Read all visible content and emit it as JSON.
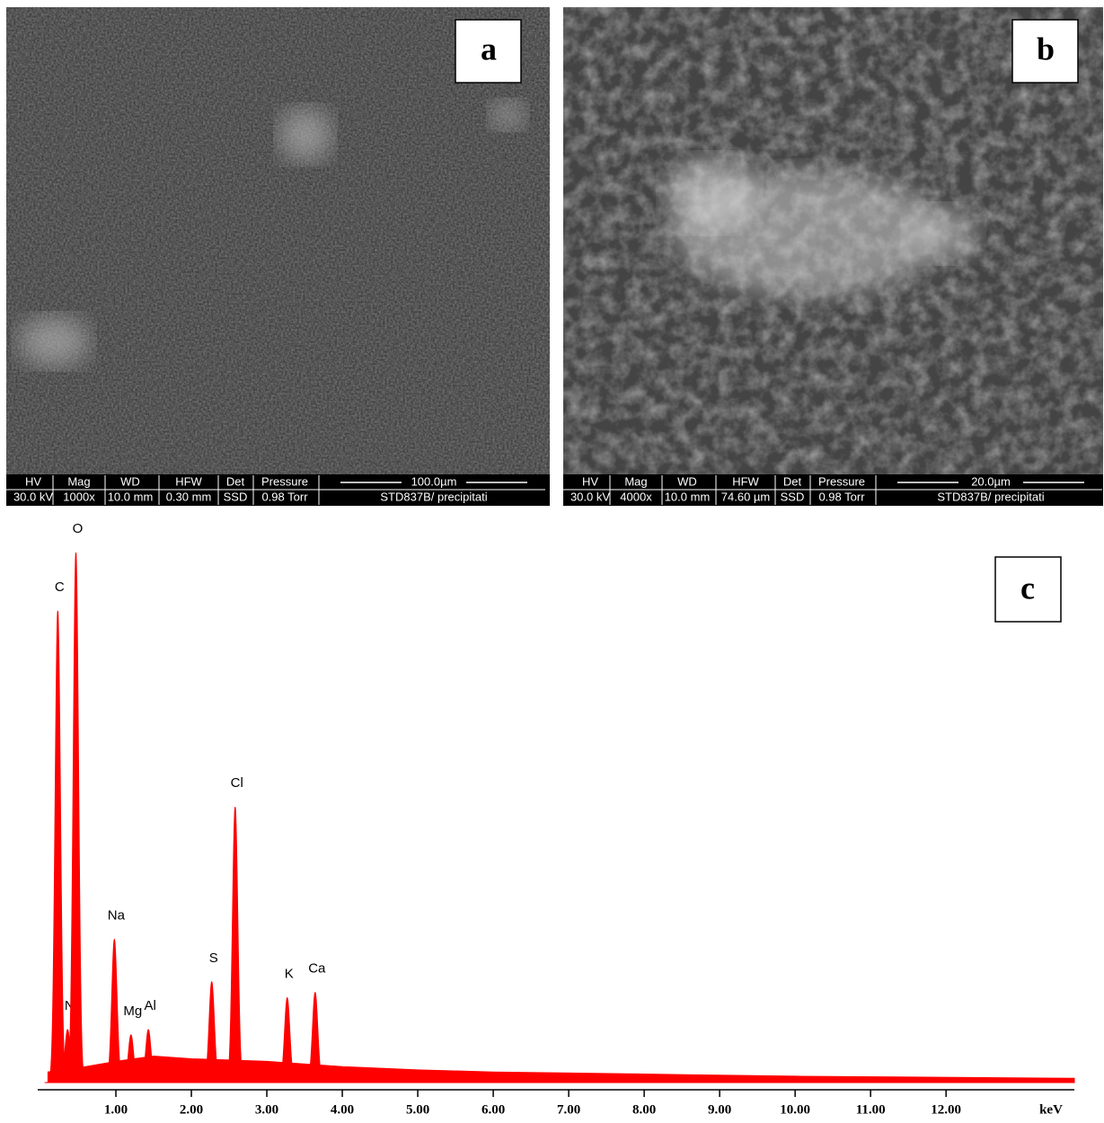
{
  "panels": [
    {
      "label": "a",
      "info_headers": [
        "HV",
        "Mag",
        "WD",
        "HFW",
        "Det",
        "Pressure"
      ],
      "info_values": [
        "30.0 kV",
        "1000x",
        "10.0 mm",
        "0.30 mm",
        "SSD",
        "0.98  Torr"
      ],
      "scale": "100.0µm",
      "sample": "STD837B/ precipitati"
    },
    {
      "label": "b",
      "info_headers": [
        "HV",
        "Mag",
        "WD",
        "HFW",
        "Det",
        "Pressure"
      ],
      "info_values": [
        "30.0 kV",
        "4000x",
        "10.0 mm",
        "74.60 µm",
        "SSD",
        "0.98  Torr"
      ],
      "scale": "20.0µm",
      "sample": "STD837B/ precipitati"
    }
  ],
  "chart_data": {
    "type": "spectrum",
    "label": "c",
    "xlabel": "keV",
    "color": "#ff0000",
    "xlim": [
      0,
      13.7
    ],
    "ylim": [
      0,
      100
    ],
    "xticks": [
      {
        "value": 1,
        "label": "1.00"
      },
      {
        "value": 2,
        "label": "2.00"
      },
      {
        "value": 3,
        "label": "3.00"
      },
      {
        "value": 4,
        "label": "4.00"
      },
      {
        "value": 5,
        "label": "5.00"
      },
      {
        "value": 6,
        "label": "6.00"
      },
      {
        "value": 7,
        "label": "7.00"
      },
      {
        "value": 8,
        "label": "8.00"
      },
      {
        "value": 9,
        "label": "9.00"
      },
      {
        "value": 10,
        "label": "10.00"
      },
      {
        "value": 11,
        "label": "11.00"
      },
      {
        "value": 12,
        "label": "12.00"
      }
    ],
    "peaks": [
      {
        "label": "C",
        "x": 0.23,
        "height": 89
      },
      {
        "label": "N",
        "x": 0.36,
        "height": 10
      },
      {
        "label": "O",
        "x": 0.47,
        "height": 100
      },
      {
        "label": "Na",
        "x": 0.98,
        "height": 27
      },
      {
        "label": "Mg",
        "x": 1.2,
        "height": 9
      },
      {
        "label": "Al",
        "x": 1.43,
        "height": 10
      },
      {
        "label": "S",
        "x": 2.27,
        "height": 19
      },
      {
        "label": "Cl",
        "x": 2.58,
        "height": 52
      },
      {
        "label": "K",
        "x": 3.27,
        "height": 16
      },
      {
        "label": "Ca",
        "x": 3.64,
        "height": 17
      }
    ],
    "continuum": {
      "x": [
        0.1,
        0.6,
        1,
        1.5,
        2,
        3,
        4,
        5,
        6,
        8,
        10,
        13.7
      ],
      "values": [
        2,
        3,
        4,
        5,
        4.5,
        4,
        3,
        2.4,
        2,
        1.6,
        1.2,
        0.8
      ]
    }
  }
}
